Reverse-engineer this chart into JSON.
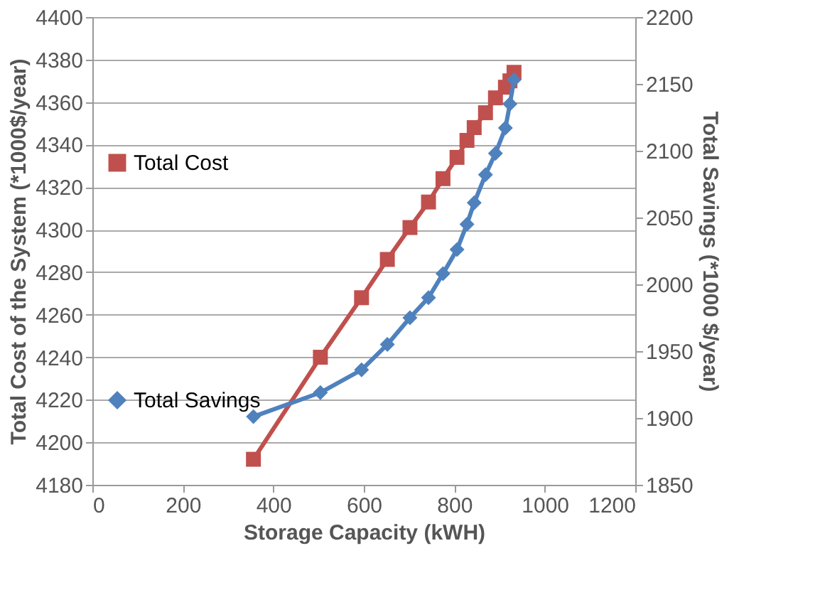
{
  "chart_data": {
    "type": "line",
    "xlabel": "Storage Capacity  (kWH)",
    "ylabel": "Total Cost of the System (*1000$/year)",
    "y2label": "Total Savings (*1000 $/year)",
    "x": [
      356,
      504,
      595,
      652,
      702,
      743,
      775,
      806,
      828,
      844,
      869,
      891,
      913,
      923,
      932
    ],
    "series": [
      {
        "name": "Total Cost",
        "color": "#c0504d",
        "marker": "square",
        "values": [
          4192,
          4240,
          4268,
          4286,
          4301,
          4313,
          4324,
          4334,
          4342,
          4348,
          4355,
          4362,
          4367,
          4370,
          4374
        ]
      },
      {
        "name": "Total Savings",
        "color": "#4f81bd",
        "marker": "diamond",
        "axis": "y2",
        "values": [
          1901,
          1919,
          1936,
          1955,
          1975,
          1990,
          2008,
          2026,
          2045,
          2061,
          2082,
          2098,
          2117,
          2135,
          2153
        ]
      }
    ],
    "xlim": [
      0,
      1200
    ],
    "xticks": [
      0,
      200,
      400,
      600,
      800,
      1000,
      1200
    ],
    "ylim": [
      4180,
      4400
    ],
    "yticks": [
      4180,
      4200,
      4220,
      4240,
      4260,
      4280,
      4300,
      4320,
      4340,
      4360,
      4380,
      4400
    ],
    "y2lim": [
      1850,
      2200
    ],
    "y2ticks": [
      1850,
      1900,
      1950,
      2000,
      2050,
      2100,
      2150,
      2200
    ],
    "grid": "y",
    "legend": "left",
    "line_style": "solid"
  }
}
